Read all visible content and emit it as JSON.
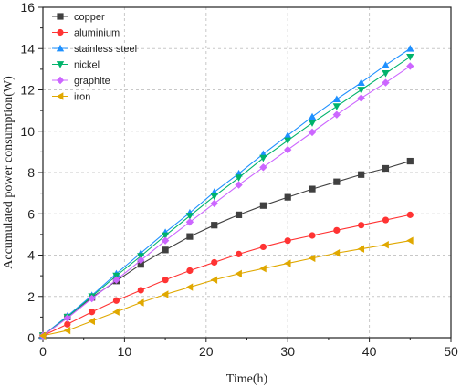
{
  "chart_data": {
    "type": "line",
    "title": "",
    "xlabel": "Time(h)",
    "ylabel": "Accumulated power consumption(W)",
    "xlim": [
      0,
      50
    ],
    "ylim": [
      0,
      16
    ],
    "xticks": [
      0,
      10,
      20,
      30,
      40,
      50
    ],
    "yticks": [
      0,
      2,
      4,
      6,
      8,
      10,
      12,
      14,
      16
    ],
    "grid": true,
    "legend_position": "top-left",
    "x": [
      0,
      3,
      6,
      9,
      12,
      15,
      18,
      21,
      24,
      27,
      30,
      33,
      36,
      39,
      42,
      45
    ],
    "series": [
      {
        "name": "copper",
        "color": "#404040",
        "marker": "square",
        "values": [
          0.1,
          1.0,
          1.95,
          2.75,
          3.55,
          4.25,
          4.9,
          5.45,
          5.95,
          6.4,
          6.8,
          7.2,
          7.55,
          7.9,
          8.2,
          8.55
        ]
      },
      {
        "name": "aluminium",
        "color": "#ff3333",
        "marker": "circle",
        "values": [
          0.1,
          0.65,
          1.25,
          1.8,
          2.3,
          2.8,
          3.25,
          3.65,
          4.05,
          4.4,
          4.7,
          4.95,
          5.2,
          5.45,
          5.7,
          5.95
        ]
      },
      {
        "name": "stainless steel",
        "color": "#1e90ff",
        "marker": "triangle-up",
        "values": [
          0.1,
          1.05,
          2.05,
          3.1,
          4.1,
          5.1,
          6.05,
          7.05,
          7.95,
          8.9,
          9.8,
          10.7,
          11.55,
          12.35,
          13.2,
          14.0
        ]
      },
      {
        "name": "nickel",
        "color": "#00b36b",
        "marker": "triangle-down",
        "values": [
          0.1,
          1.0,
          2.0,
          3.0,
          3.95,
          4.95,
          5.9,
          6.85,
          7.75,
          8.7,
          9.55,
          10.4,
          11.2,
          12.0,
          12.8,
          13.6
        ]
      },
      {
        "name": "graphite",
        "color": "#cc66ff",
        "marker": "diamond",
        "values": [
          0.1,
          0.95,
          1.9,
          2.8,
          3.75,
          4.7,
          5.6,
          6.5,
          7.4,
          8.25,
          9.1,
          9.95,
          10.8,
          11.6,
          12.35,
          13.15
        ]
      },
      {
        "name": "iron",
        "color": "#e0a800",
        "marker": "triangle-left",
        "values": [
          0.1,
          0.35,
          0.8,
          1.25,
          1.7,
          2.1,
          2.45,
          2.8,
          3.1,
          3.35,
          3.6,
          3.85,
          4.1,
          4.3,
          4.5,
          4.7
        ]
      }
    ]
  }
}
